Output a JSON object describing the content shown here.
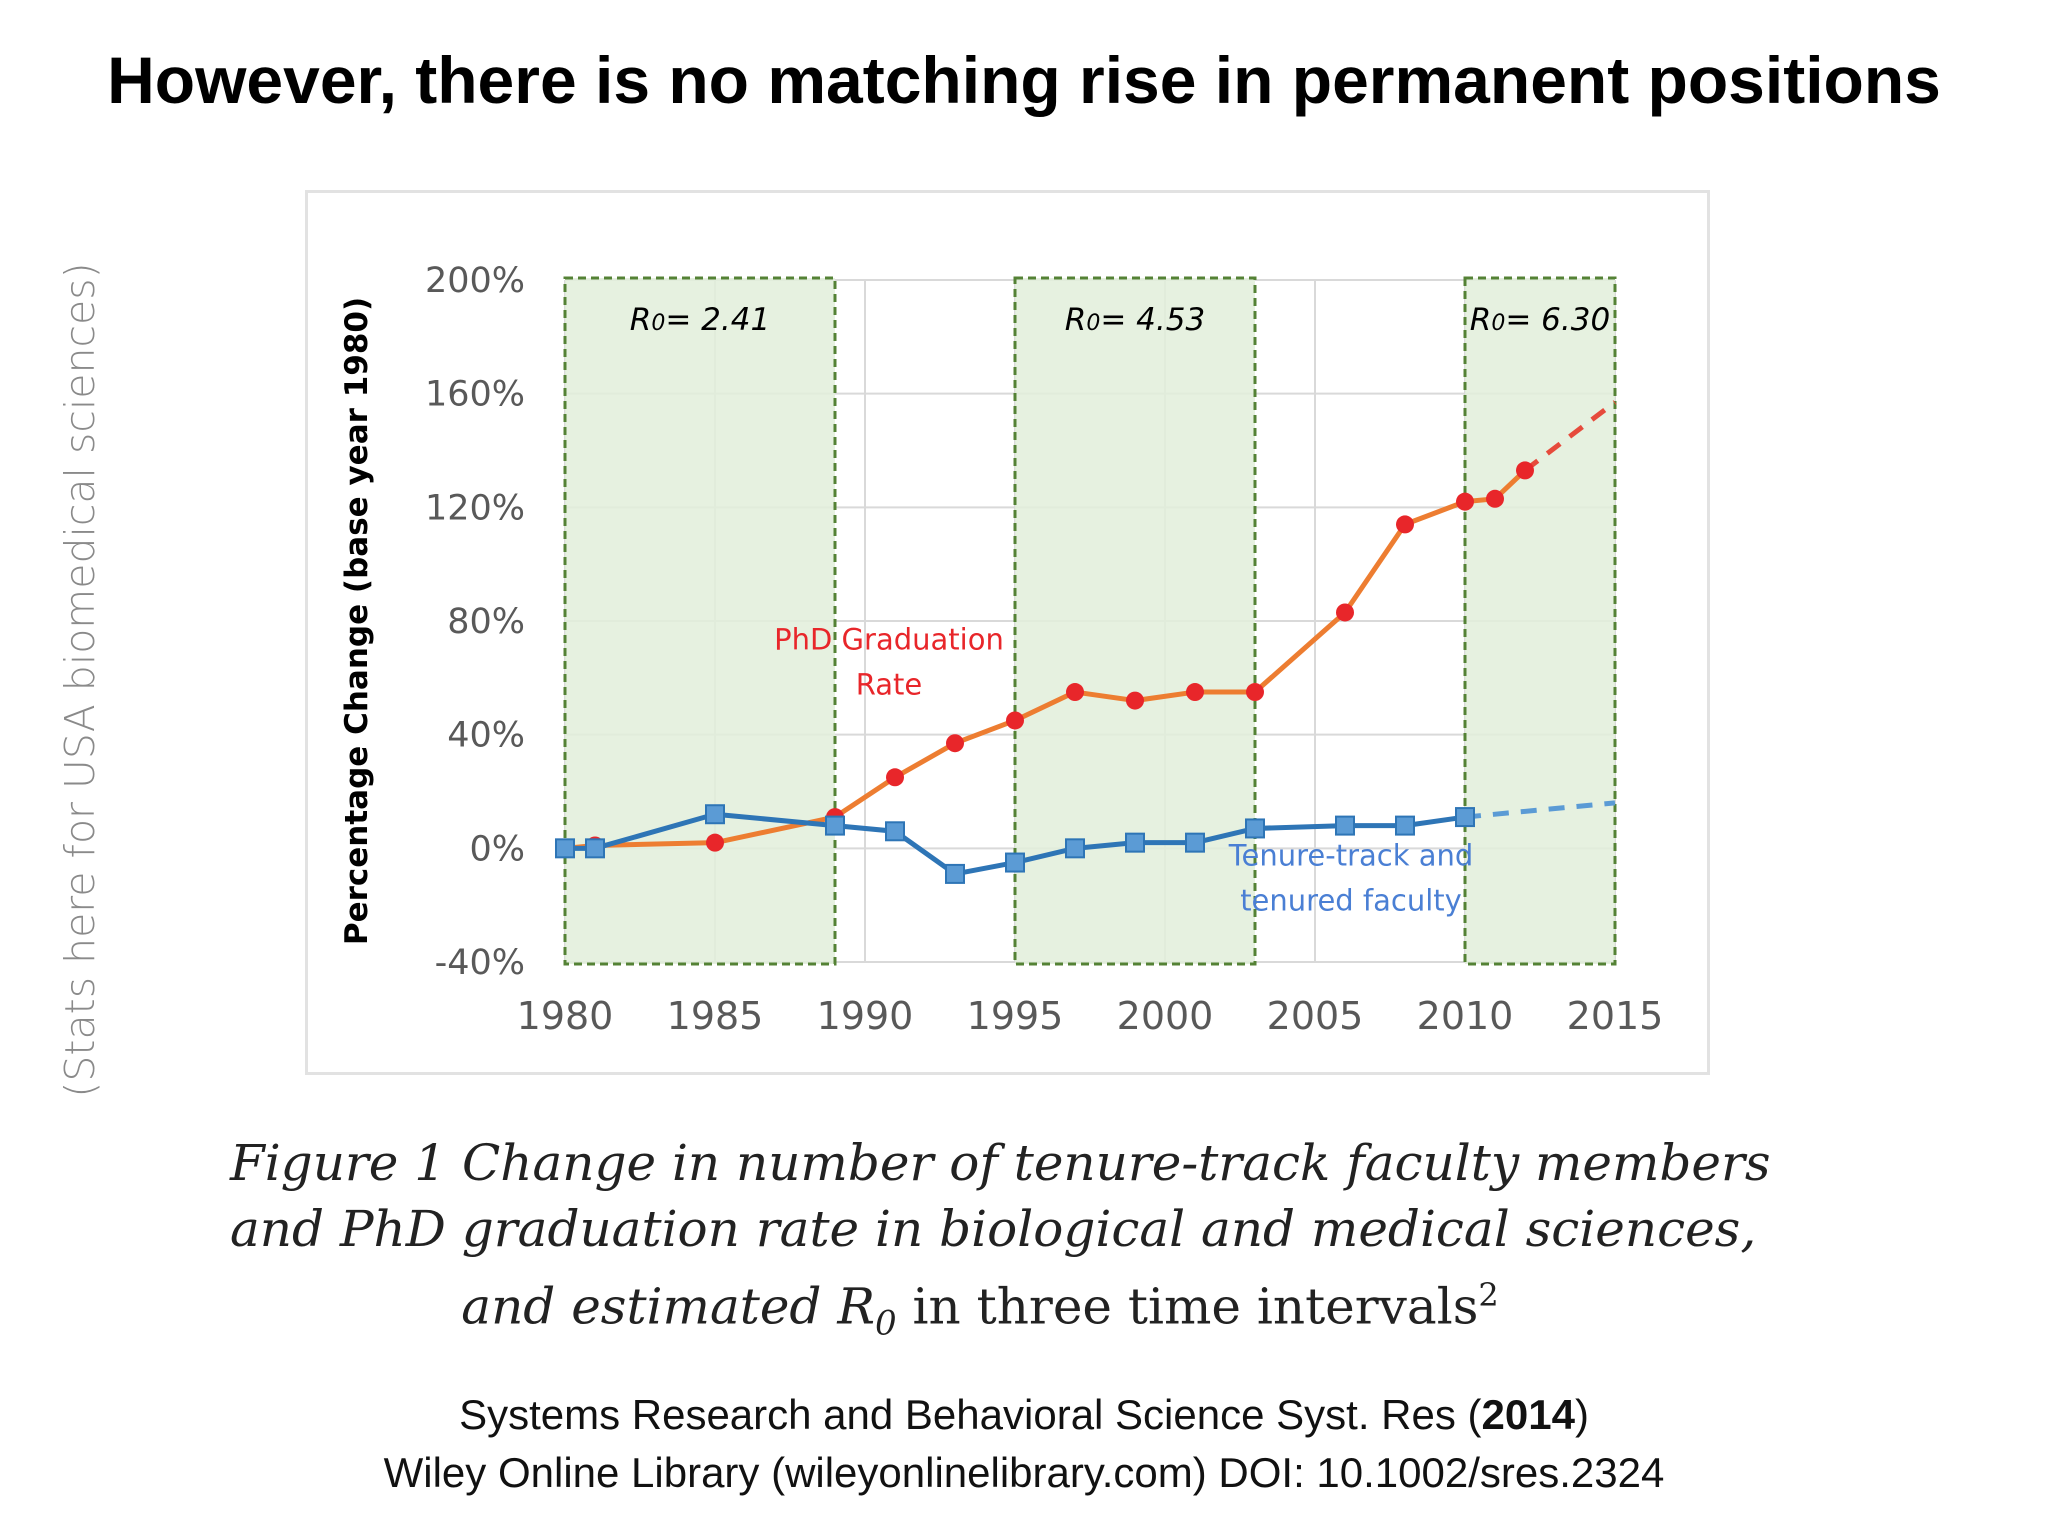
{
  "slide": {
    "title": "However, there is no matching rise in permanent positions",
    "side_note": "(Stats here for USA biomedical sciences)"
  },
  "caption": {
    "line1": "Figure 1 Change in number of tenure-track faculty members",
    "line2": "and PhD graduation rate in biological and medical sciences,",
    "line3_a": "and estimated ",
    "line3_r": "R",
    "line3_sub": "0",
    "line3_b": " in three time intervals",
    "line3_sup": "2"
  },
  "citation": {
    "line1_a": "Systems Research and Behavioral Science Syst. Res (",
    "line1_year": "2014",
    "line1_b": ")",
    "line2": "Wiley Online Library (wileyonlinelibrary.com) DOI: 10.1002/sres.2324"
  },
  "chart_data": {
    "type": "line",
    "ylabel": "Percentage Change (base year 1980)",
    "xlabel": "",
    "xlim": [
      1980,
      2015
    ],
    "ylim": [
      -40,
      200
    ],
    "x_ticks": [
      "1980",
      "1985",
      "1990",
      "1995",
      "2000",
      "2005",
      "2010",
      "2015"
    ],
    "y_ticks": [
      "-40%",
      "0%",
      "40%",
      "80%",
      "120%",
      "160%",
      "200%"
    ],
    "gridlines": true,
    "shaded_intervals": [
      {
        "start": 1980,
        "end": 1989,
        "label_prefix": "R",
        "label_sub": "0",
        "label_suffix": "= 2.41"
      },
      {
        "start": 1995,
        "end": 2003,
        "label_prefix": "R",
        "label_sub": "0",
        "label_suffix": "= 4.53"
      },
      {
        "start": 2010,
        "end": 2015,
        "label_prefix": "R",
        "label_sub": "0",
        "label_suffix": "= 6.30"
      }
    ],
    "series": [
      {
        "name": "PhD Graduation Rate",
        "label_lines": [
          "PhD Graduation",
          "Rate"
        ],
        "line_color": "#ed7d31",
        "marker_color": "#e8262a",
        "marker": "circle",
        "x": [
          1980,
          1981,
          1985,
          1989,
          1991,
          1993,
          1995,
          1997,
          1999,
          2001,
          2003,
          2006,
          2008,
          2010,
          2011,
          2012
        ],
        "values": [
          0,
          1,
          2,
          11,
          25,
          37,
          45,
          55,
          52,
          55,
          55,
          83,
          114,
          122,
          123,
          133
        ],
        "projection": {
          "x": [
            2012,
            2015
          ],
          "values": [
            133,
            157
          ]
        }
      },
      {
        "name": "Tenure-track and tenured faculty",
        "label_lines": [
          "Tenure-track and",
          "tenured faculty"
        ],
        "line_color": "#2e75b6",
        "marker_color": "#5b9bd5",
        "marker": "square",
        "x": [
          1980,
          1981,
          1985,
          1989,
          1991,
          1993,
          1995,
          1997,
          1999,
          2001,
          2003,
          2006,
          2008,
          2010
        ],
        "values": [
          0,
          0,
          12,
          8,
          6,
          -9,
          -5,
          0,
          2,
          2,
          7,
          8,
          8,
          11
        ],
        "projection": {
          "x": [
            2010,
            2015
          ],
          "values": [
            11,
            16
          ]
        }
      }
    ],
    "colors": {
      "shade_fill": "#e2efda",
      "shade_border": "#548235",
      "grid": "#d9d9d9",
      "tick_text": "#595959"
    }
  }
}
